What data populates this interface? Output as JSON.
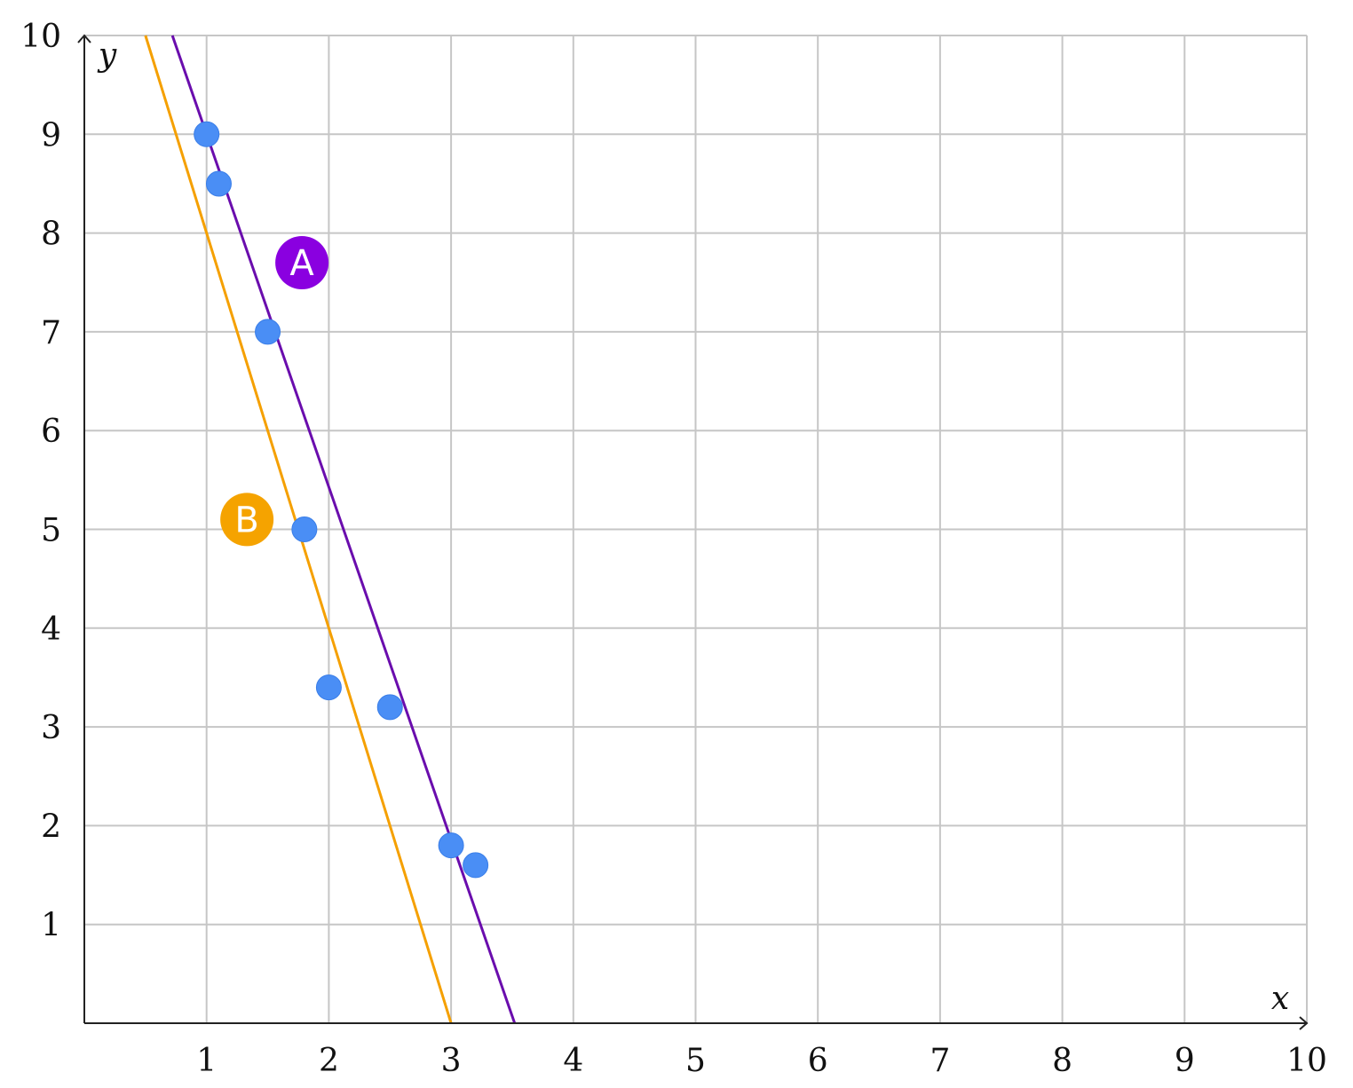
{
  "chart_data": {
    "type": "scatter",
    "xlabel": "x",
    "ylabel": "y",
    "xlim": [
      0,
      10
    ],
    "ylim": [
      0,
      10
    ],
    "x_ticks": [
      1,
      2,
      3,
      4,
      5,
      6,
      7,
      8,
      9,
      10
    ],
    "y_ticks": [
      1,
      2,
      3,
      4,
      5,
      6,
      7,
      8,
      9,
      10
    ],
    "grid": true,
    "points": [
      {
        "x": 1.0,
        "y": 9.0
      },
      {
        "x": 1.1,
        "y": 8.5
      },
      {
        "x": 1.5,
        "y": 7.0
      },
      {
        "x": 1.8,
        "y": 5.0
      },
      {
        "x": 2.0,
        "y": 3.4
      },
      {
        "x": 2.5,
        "y": 3.2
      },
      {
        "x": 3.0,
        "y": 1.8
      },
      {
        "x": 3.2,
        "y": 1.6
      }
    ],
    "lines": [
      {
        "label": "A",
        "color": "#6a0dad",
        "x1": 0.72,
        "y1": 10,
        "x2": 3.52,
        "y2": 0
      },
      {
        "label": "B",
        "color": "#f5a000",
        "x1": 0.5,
        "y1": 10,
        "x2": 3.0,
        "y2": 0
      }
    ],
    "line_labels": [
      {
        "text": "A",
        "x": 1.78,
        "y": 7.7,
        "color": "#8a00e0"
      },
      {
        "text": "B",
        "x": 1.33,
        "y": 5.1,
        "color": "#f5a300"
      }
    ],
    "point_color": "#4a8ef5"
  }
}
